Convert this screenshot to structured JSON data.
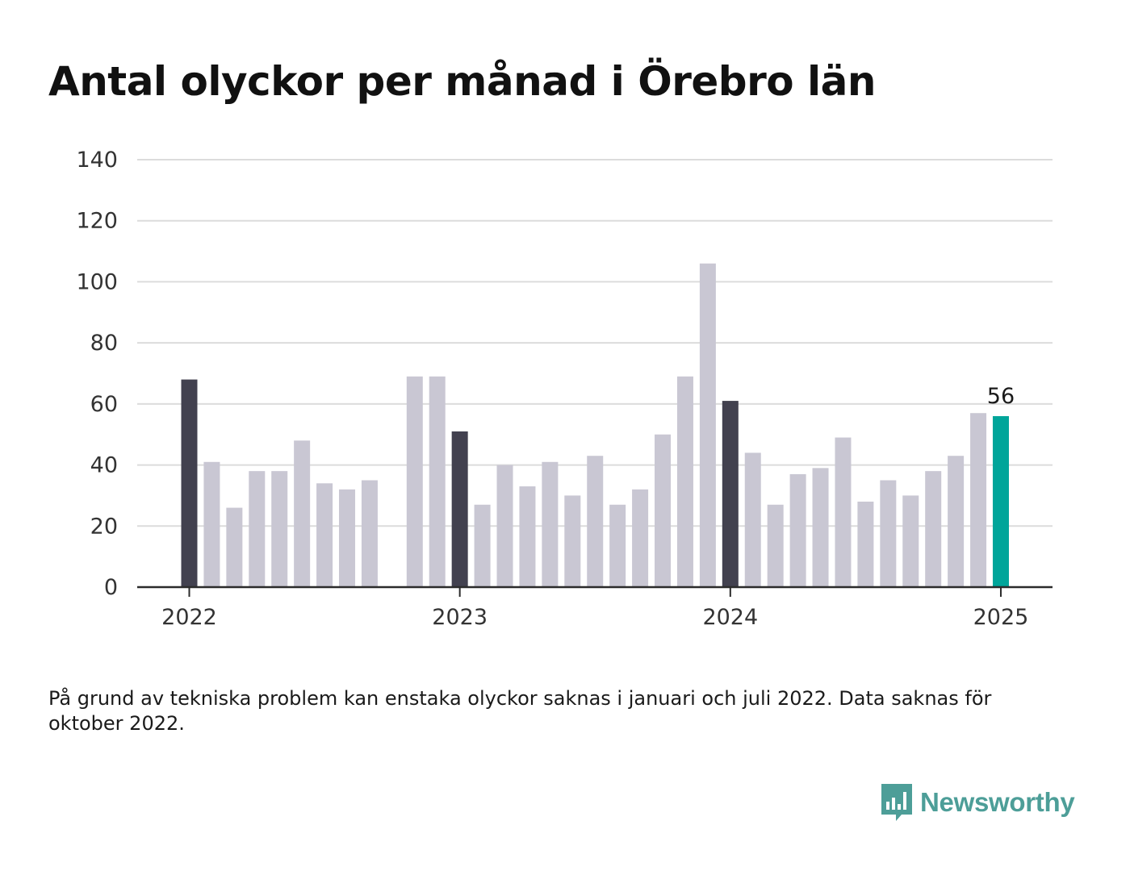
{
  "title": "Antal olyckor per månad i Örebro län",
  "footnote": "På grund av tekniska problem kan enstaka olyckor saknas i januari och juli 2022. Data saknas för oktober 2022.",
  "brand": {
    "name": "Newsworthy",
    "icon": "newsworthy-logo-icon"
  },
  "colors": {
    "january": "#42414f",
    "other": "#c9c7d3",
    "latest": "#00a59a",
    "grid": "#dcdcdc",
    "axis": "#2b2b2b",
    "brand": "#4d9e98"
  },
  "chart_data": {
    "type": "bar",
    "title": "Antal olyckor per månad i Örebro län",
    "xlabel": "",
    "ylabel": "",
    "ylim": [
      0,
      140
    ],
    "yticks": [
      0,
      20,
      40,
      60,
      80,
      100,
      120,
      140
    ],
    "xticks": [
      "2022",
      "2023",
      "2024",
      "2025"
    ],
    "grid": true,
    "categories": [
      "2022-01",
      "2022-02",
      "2022-03",
      "2022-04",
      "2022-05",
      "2022-06",
      "2022-07",
      "2022-08",
      "2022-09",
      "2022-10",
      "2022-11",
      "2022-12",
      "2023-01",
      "2023-02",
      "2023-03",
      "2023-04",
      "2023-05",
      "2023-06",
      "2023-07",
      "2023-08",
      "2023-09",
      "2023-10",
      "2023-11",
      "2023-12",
      "2024-01",
      "2024-02",
      "2024-03",
      "2024-04",
      "2024-05",
      "2024-06",
      "2024-07",
      "2024-08",
      "2024-09",
      "2024-10",
      "2024-11",
      "2024-12",
      "2025-01"
    ],
    "values": [
      68,
      41,
      26,
      38,
      38,
      48,
      34,
      32,
      35,
      null,
      69,
      69,
      51,
      27,
      40,
      33,
      41,
      30,
      43,
      27,
      32,
      50,
      69,
      106,
      61,
      44,
      27,
      37,
      39,
      49,
      28,
      35,
      30,
      38,
      43,
      57,
      56
    ],
    "annotations": [
      {
        "category": "2025-01",
        "text": "56"
      }
    ]
  }
}
